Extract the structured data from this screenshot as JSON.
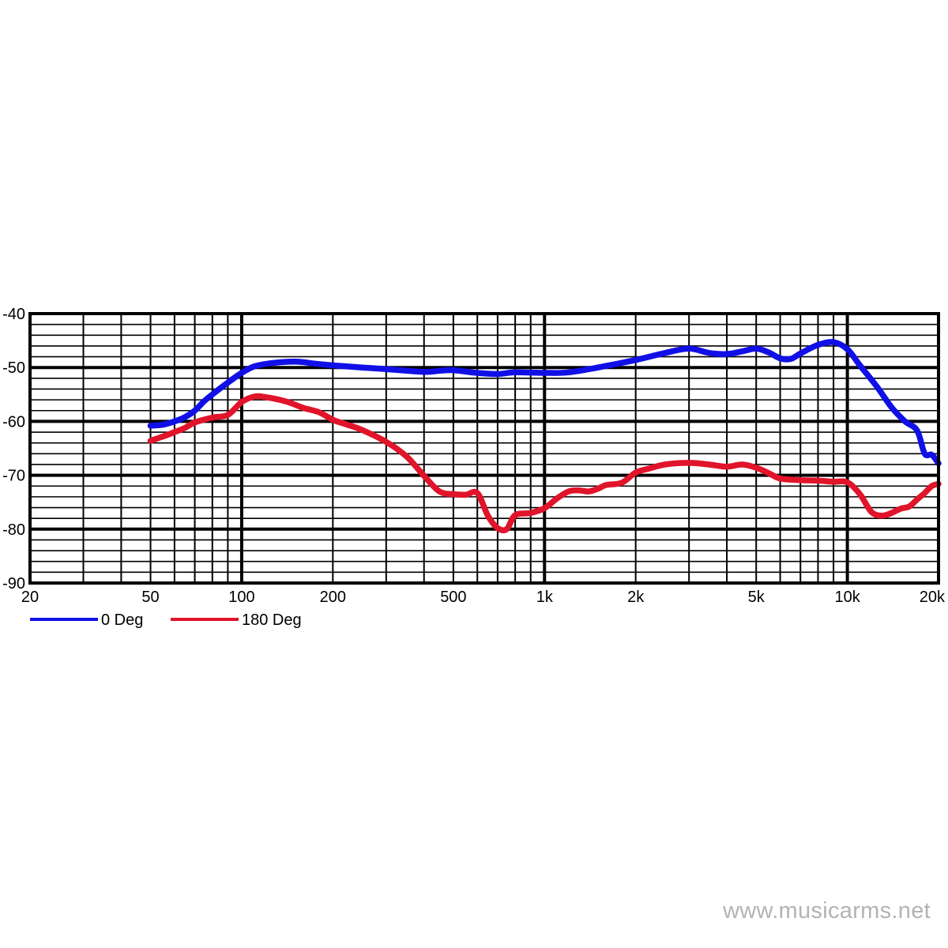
{
  "chart_data": {
    "type": "line",
    "x_scale": "log",
    "xlim": [
      20,
      20000
    ],
    "ylim": [
      -90,
      -40
    ],
    "grid": true,
    "legend_position": "bottom-left",
    "x_ticks": [
      {
        "value": 20,
        "label": "20"
      },
      {
        "value": 50,
        "label": "50"
      },
      {
        "value": 100,
        "label": "100"
      },
      {
        "value": 200,
        "label": "200"
      },
      {
        "value": 500,
        "label": "500"
      },
      {
        "value": 1000,
        "label": "1k"
      },
      {
        "value": 2000,
        "label": "2k"
      },
      {
        "value": 5000,
        "label": "5k"
      },
      {
        "value": 10000,
        "label": "10k"
      },
      {
        "value": 20000,
        "label": "20k"
      }
    ],
    "y_ticks": [
      {
        "value": -40,
        "label": "-40"
      },
      {
        "value": -50,
        "label": "-50"
      },
      {
        "value": -60,
        "label": "-60"
      },
      {
        "value": -70,
        "label": "-70"
      },
      {
        "value": -80,
        "label": "-80"
      },
      {
        "value": -90,
        "label": "-90"
      }
    ],
    "series": [
      {
        "name": "0 Deg",
        "color": "#1010e6",
        "x": [
          50,
          55,
          60,
          65,
          70,
          75,
          80,
          90,
          100,
          110,
          125,
          150,
          175,
          200,
          250,
          300,
          400,
          450,
          500,
          600,
          700,
          800,
          1000,
          1200,
          1500,
          2000,
          2500,
          3000,
          3500,
          4000,
          4500,
          5000,
          5500,
          6000,
          6500,
          7000,
          8000,
          9000,
          10000,
          11000,
          12500,
          14000,
          15500,
          17000,
          18000,
          19000,
          20000
        ],
        "y": [
          -60.8,
          -60.6,
          -60,
          -59.2,
          -58,
          -56.3,
          -55,
          -52.8,
          -51,
          -49.8,
          -49.2,
          -48.9,
          -49.3,
          -49.6,
          -50,
          -50.3,
          -50.8,
          -50.6,
          -50.5,
          -51,
          -51.2,
          -50.9,
          -51,
          -50.9,
          -50,
          -48.6,
          -47.3,
          -46.5,
          -47.3,
          -47.5,
          -47,
          -46.5,
          -47.2,
          -48.3,
          -48.4,
          -47.4,
          -45.8,
          -45.3,
          -46.6,
          -49.6,
          -53.5,
          -57.4,
          -60,
          -61.7,
          -66,
          -66.2,
          -67.8
        ]
      },
      {
        "name": "180 Deg",
        "color": "#e0142a",
        "x": [
          50,
          55,
          60,
          65,
          70,
          80,
          90,
          100,
          110,
          120,
          140,
          160,
          180,
          200,
          220,
          250,
          300,
          350,
          400,
          450,
          500,
          550,
          600,
          650,
          700,
          750,
          800,
          900,
          1000,
          1100,
          1200,
          1300,
          1400,
          1500,
          1600,
          1800,
          2000,
          2200,
          2500,
          3000,
          3500,
          4000,
          4500,
          5000,
          5500,
          6000,
          7000,
          8000,
          9000,
          10000,
          11000,
          12000,
          13000,
          14000,
          15000,
          16000,
          17000,
          18000,
          19000,
          20000
        ],
        "y": [
          -63.6,
          -62.8,
          -62,
          -61.2,
          -60.2,
          -59.3,
          -58.8,
          -56.4,
          -55.4,
          -55.5,
          -56.3,
          -57.5,
          -58.3,
          -59.7,
          -60.5,
          -61.6,
          -63.8,
          -66.5,
          -70.1,
          -73,
          -73.5,
          -73.6,
          -73.3,
          -77.5,
          -79.8,
          -80,
          -77.4,
          -77,
          -76.1,
          -74.3,
          -73,
          -72.8,
          -73,
          -72.5,
          -71.8,
          -71.4,
          -69.5,
          -68.8,
          -68,
          -67.7,
          -68,
          -68.4,
          -68,
          -68.6,
          -69.6,
          -70.6,
          -70.9,
          -71,
          -71.2,
          -71.3,
          -73.5,
          -76.8,
          -77.5,
          -77,
          -76.2,
          -75.8,
          -74.5,
          -73.3,
          -72,
          -71.6
        ]
      }
    ]
  },
  "legend": [
    {
      "label": "0 Deg",
      "color": "#1010e6"
    },
    {
      "label": "180 Deg",
      "color": "#e0142a"
    }
  ],
  "watermark": "www.musicarms.net"
}
